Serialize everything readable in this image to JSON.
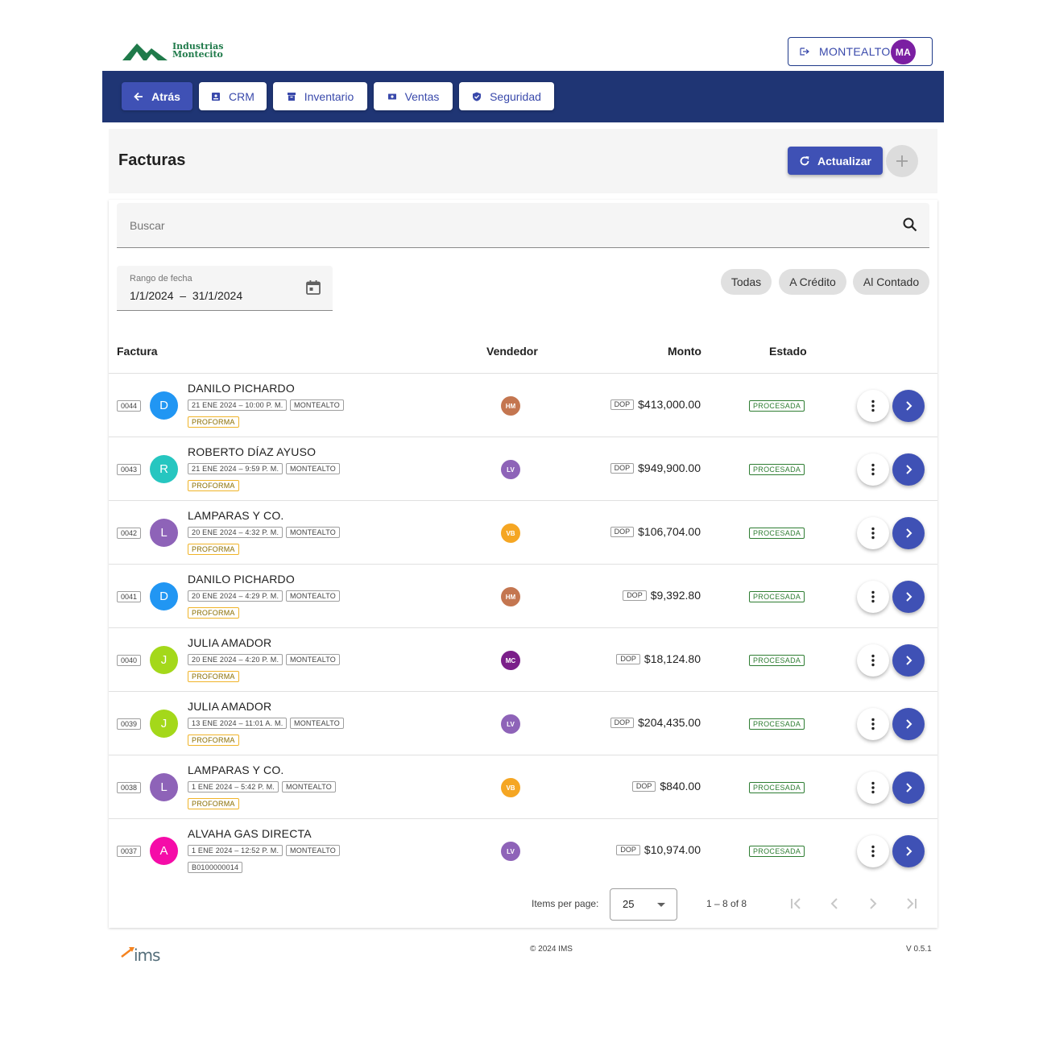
{
  "brand": {
    "line1": "Industrias",
    "line2": "Montecito",
    "color": "#1f7a4a"
  },
  "user": {
    "name": "MONTEALTO",
    "initials": "MA",
    "avatar_color": "#7b1fa2"
  },
  "nav": {
    "back": "Atrás",
    "items": [
      {
        "label": "CRM",
        "icon": "contact-card-icon"
      },
      {
        "label": "Inventario",
        "icon": "archive-icon"
      },
      {
        "label": "Ventas",
        "icon": "cash-icon"
      },
      {
        "label": "Seguridad",
        "icon": "shield-check-icon"
      }
    ]
  },
  "page": {
    "title": "Facturas",
    "refresh_label": "Actualizar",
    "add_label": "+"
  },
  "search": {
    "placeholder": "Buscar"
  },
  "date_range": {
    "label": "Rango de fecha",
    "value": "1/1/2024  –  31/1/2024"
  },
  "filters": [
    "Todas",
    "A Crédito",
    "Al Contado"
  ],
  "columns": {
    "invoice": "Factura",
    "seller": "Vendedor",
    "amount": "Monto",
    "status": "Estado"
  },
  "rows": [
    {
      "number": "0044",
      "initial": "D",
      "avatar_color": "#2196f3",
      "client": "DANILO PICHARDO",
      "date": "21 ENE 2024 – 10:00 P. M.",
      "user": "MONTEALTO",
      "doc": "PROFORMA",
      "seller": "HM",
      "seller_color": "#c47650",
      "currency": "DOP",
      "amount": "$413,000.00",
      "status": "PROCESADA"
    },
    {
      "number": "0043",
      "initial": "R",
      "avatar_color": "#26c6c0",
      "client": "ROBERTO DÍAZ AYUSO",
      "date": "21 ENE 2024 – 9:59 P. M.",
      "user": "MONTEALTO",
      "doc": "PROFORMA",
      "seller": "LV",
      "seller_color": "#8e63b8",
      "currency": "DOP",
      "amount": "$949,900.00",
      "status": "PROCESADA"
    },
    {
      "number": "0042",
      "initial": "L",
      "avatar_color": "#8e63b8",
      "client": "LAMPARAS Y CO.",
      "date": "20 ENE 2024 – 4:32 P. M.",
      "user": "MONTEALTO",
      "doc": "PROFORMA",
      "seller": "VB",
      "seller_color": "#f5a623",
      "currency": "DOP",
      "amount": "$106,704.00",
      "status": "PROCESADA"
    },
    {
      "number": "0041",
      "initial": "D",
      "avatar_color": "#2196f3",
      "client": "DANILO PICHARDO",
      "date": "20 ENE 2024 – 4:29 P. M.",
      "user": "MONTEALTO",
      "doc": "PROFORMA",
      "seller": "HM",
      "seller_color": "#c47650",
      "currency": "DOP",
      "amount": "$9,392.80",
      "status": "PROCESADA"
    },
    {
      "number": "0040",
      "initial": "J",
      "avatar_color": "#a4d81a",
      "client": "JULIA AMADOR",
      "date": "20 ENE 2024 – 4:20 P. M.",
      "user": "MONTEALTO",
      "doc": "PROFORMA",
      "seller": "MC",
      "seller_color": "#7b1f8a",
      "currency": "DOP",
      "amount": "$18,124.80",
      "status": "PROCESADA"
    },
    {
      "number": "0039",
      "initial": "J",
      "avatar_color": "#a4d81a",
      "client": "JULIA AMADOR",
      "date": "13 ENE 2024 – 11:01 A. M.",
      "user": "MONTEALTO",
      "doc": "PROFORMA",
      "seller": "LV",
      "seller_color": "#8e63b8",
      "currency": "DOP",
      "amount": "$204,435.00",
      "status": "PROCESADA"
    },
    {
      "number": "0038",
      "initial": "L",
      "avatar_color": "#8e63b8",
      "client": "LAMPARAS Y CO.",
      "date": "1 ENE 2024 – 5:42 P. M.",
      "user": "MONTEALTO",
      "doc": "PROFORMA",
      "seller": "VB",
      "seller_color": "#f5a623",
      "currency": "DOP",
      "amount": "$840.00",
      "status": "PROCESADA"
    },
    {
      "number": "0037",
      "initial": "A",
      "avatar_color": "#f50ca8",
      "client": "ALVAHA GAS DIRECTA",
      "date": "1 ENE 2024 – 12:52 P. M.",
      "user": "MONTEALTO",
      "doc": "B0100000014",
      "seller": "LV",
      "seller_color": "#8e63b8",
      "currency": "DOP",
      "amount": "$10,974.00",
      "status": "PROCESADA"
    }
  ],
  "paginator": {
    "label": "Items per page:",
    "page_size": "25",
    "range": "1 – 8 of 8"
  },
  "footer": {
    "copyright": "© 2024 IMS",
    "version": "V 0.5.1",
    "logo_text": "ims"
  },
  "colors": {
    "navbar": "#1f3574",
    "primary": "#3f51b5",
    "status": "#2e7d32",
    "proforma": "#f0b429"
  }
}
